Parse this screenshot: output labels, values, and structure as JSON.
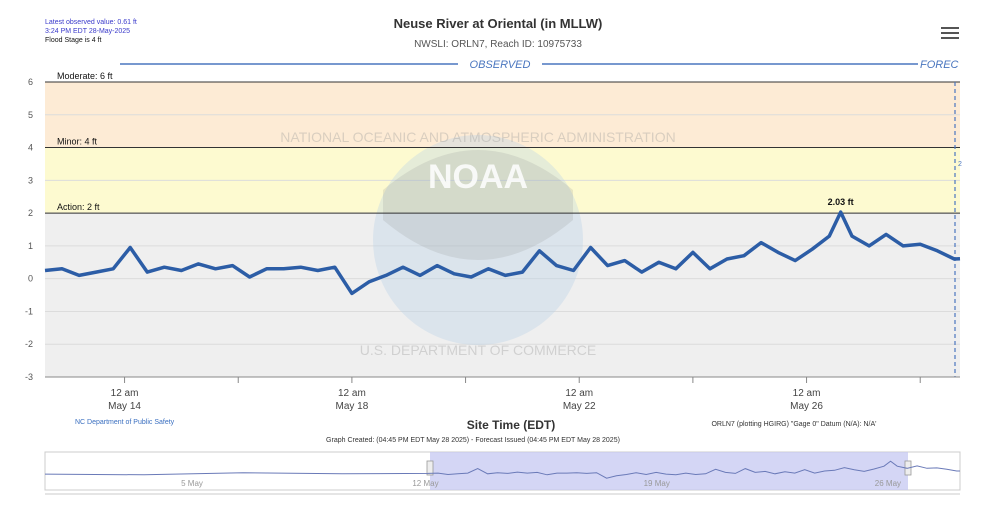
{
  "header": {
    "title": "Neuse River at Oriental (in MLLW)",
    "subtitle": "NWSLI: ORLN7, Reach ID: 10975733",
    "latest_line1": "Latest observed value: 0.61 ft",
    "latest_line2": "3:24 PM EDT 28-May-2025",
    "flood_stage": "Flood Stage is 4 ft"
  },
  "labels": {
    "observed": "OBSERVED",
    "forecast": "FOREC",
    "xlabel": "Site Time (EDT)",
    "credit_left": "NC Department of Public Safety",
    "credit_right": "ORLN7 (plotting HGIRG) \"Gage 0\" Datum (N/A): N/A'",
    "graph_created": "Graph Created: (04:45 PM EDT May 28 2025) - Forecast Issued (04:45 PM EDT May 28 2025)",
    "flood_right_mark": "2",
    "watermark_top": "NATIONAL OCEANIC AND ATMOSPHERIC ADMINISTRATION",
    "watermark_bottom": "U.S. DEPARTMENT OF COMMERCE",
    "watermark_center": "NOAA"
  },
  "colors": {
    "line": "#2c5da6",
    "moderate_band": "#fdebd5",
    "minor_band": "#fdf8d8",
    "action_band": "#fdfad0",
    "plot_bg": "#efefef",
    "navigator_selection": "#c6c8f2"
  },
  "chart_data": {
    "type": "line",
    "title": "Neuse River at Oriental (in MLLW)",
    "xlabel": "Site Time (EDT)",
    "ylabel": "",
    "ylim": [
      -3,
      6
    ],
    "y_ticks": [
      "-3",
      "-2",
      "-1",
      "0",
      "1",
      "2",
      "3",
      "4",
      "5",
      "6"
    ],
    "x_range_days": [
      12.6,
      28.7
    ],
    "x_ticks": [
      {
        "day": 14,
        "line1": "12 am",
        "line2": "May 14"
      },
      {
        "day": 18,
        "line1": "12 am",
        "line2": "May 18"
      },
      {
        "day": 22,
        "line1": "12 am",
        "line2": "May 22"
      },
      {
        "day": 26,
        "line1": "12 am",
        "line2": "May 26"
      }
    ],
    "thresholds": [
      {
        "name": "Moderate: 6 ft",
        "value": 6
      },
      {
        "name": "Minor: 4 ft",
        "value": 4
      },
      {
        "name": "Action: 2 ft",
        "value": 2
      }
    ],
    "peak_label": {
      "text": "2.03 ft",
      "day": 26.6,
      "value": 2.03
    },
    "series": [
      {
        "x": [
          12.6,
          12.9,
          13.2,
          13.5,
          13.8,
          14.1,
          14.4,
          14.7,
          15.0,
          15.3,
          15.6,
          15.9,
          16.2,
          16.5,
          16.8,
          17.1,
          17.4,
          17.7,
          18.0,
          18.3,
          18.6,
          18.9,
          19.2,
          19.5,
          19.8,
          20.1,
          20.4,
          20.7,
          21.0,
          21.3,
          21.6,
          21.9,
          22.2,
          22.5,
          22.8,
          23.1,
          23.4,
          23.7,
          24.0,
          24.3,
          24.6,
          24.9,
          25.2,
          25.5,
          25.8,
          26.1,
          26.4,
          26.6,
          26.8,
          27.1,
          27.4,
          27.7,
          28.0,
          28.3,
          28.6,
          28.7
        ],
        "values": [
          0.25,
          0.3,
          0.1,
          0.2,
          0.3,
          0.95,
          0.2,
          0.35,
          0.25,
          0.45,
          0.3,
          0.4,
          0.05,
          0.3,
          0.3,
          0.35,
          0.25,
          0.35,
          -0.45,
          -0.1,
          0.1,
          0.35,
          0.1,
          0.4,
          0.15,
          0.05,
          0.3,
          0.1,
          0.2,
          0.85,
          0.4,
          0.25,
          0.95,
          0.4,
          0.55,
          0.2,
          0.5,
          0.3,
          0.8,
          0.3,
          0.6,
          0.7,
          1.1,
          0.8,
          0.55,
          0.9,
          1.3,
          2.03,
          1.3,
          1.0,
          1.35,
          1.0,
          1.05,
          0.85,
          0.6,
          0.61
        ]
      }
    ],
    "navigator": {
      "x_labels": [
        "5 May",
        "12 May",
        "19 May",
        "26 May"
      ]
    }
  }
}
